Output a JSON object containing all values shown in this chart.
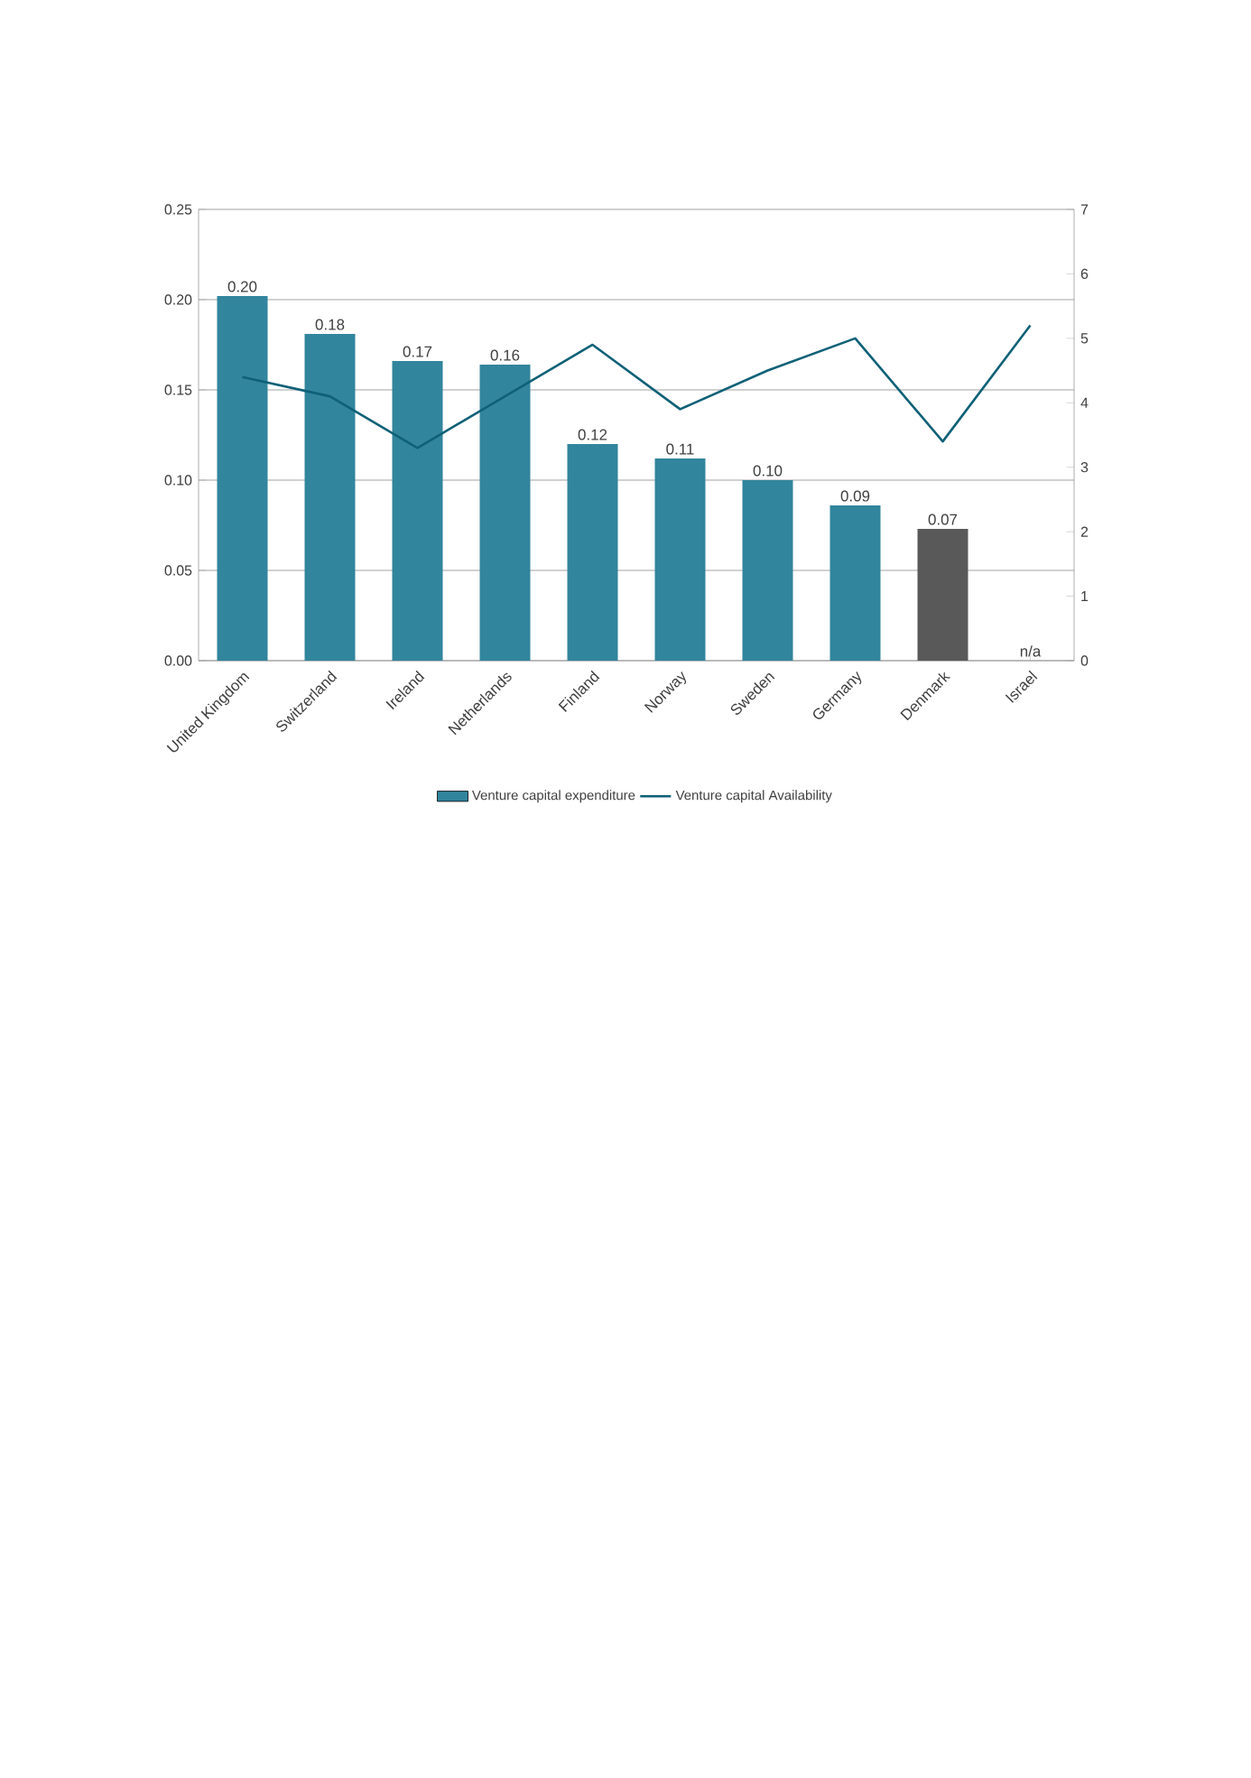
{
  "chart_data": {
    "type": "bar",
    "categories": [
      "United Kingdom",
      "Switzerland",
      "Ireland",
      "Netherlands",
      "Finland",
      "Norway",
      "Sweden",
      "Germany",
      "Denmark",
      "Israel"
    ],
    "series": [
      {
        "name": "Venture capital expenditure",
        "color": "#31859c",
        "colors": [
          "#31859c",
          "#31859c",
          "#31859c",
          "#31859c",
          "#31859c",
          "#31859c",
          "#31859c",
          "#31859c",
          "#595959",
          "#31859c"
        ],
        "values": [
          0.202,
          0.181,
          0.166,
          0.164,
          0.12,
          0.112,
          0.1,
          0.086,
          0.073,
          null
        ],
        "value_labels": [
          "0.20",
          "0.18",
          "0.17",
          "0.16",
          "0.12",
          "0.11",
          "0.10",
          "0.09",
          "0.07",
          "n/a"
        ]
      },
      {
        "name": "Venture capital Availability",
        "type": "line",
        "axis": "y2",
        "color": "#0e6177",
        "values": [
          4.4,
          4.1,
          3.3,
          4.1,
          4.9,
          3.9,
          4.5,
          5.0,
          3.4,
          5.2
        ]
      }
    ],
    "ylim": [
      0,
      0.25
    ],
    "yticks": [
      {
        "value": 0,
        "label": "0.00"
      },
      {
        "value": 0.05,
        "label": "0.05"
      },
      {
        "value": 0.1,
        "label": "0.10"
      },
      {
        "value": 0.15,
        "label": "0.15"
      },
      {
        "value": 0.2,
        "label": "0.20"
      },
      {
        "value": 0.25,
        "label": "0.25"
      }
    ],
    "y2lim": [
      0,
      7
    ],
    "y2ticks": [
      0,
      1,
      2,
      3,
      4,
      5,
      6,
      7
    ],
    "grid": "y",
    "legend": "bottom",
    "marker": "none"
  }
}
